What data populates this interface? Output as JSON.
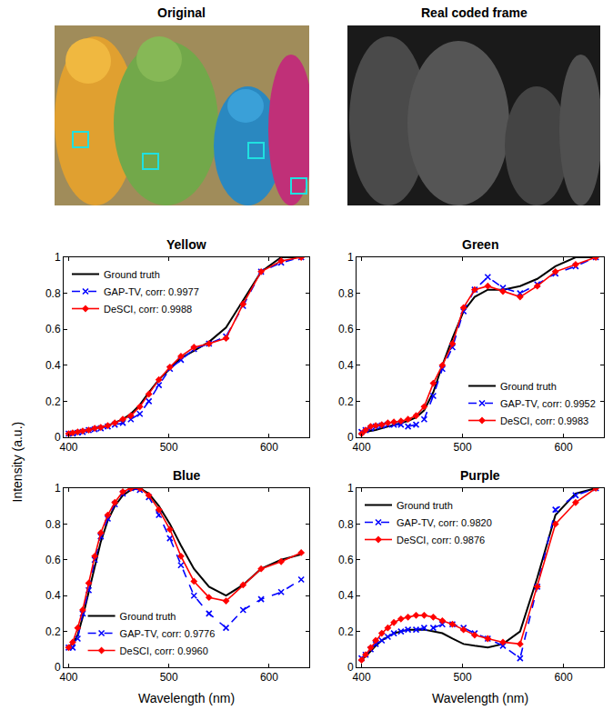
{
  "panels": [
    {
      "title": "Original"
    },
    {
      "title": "Real coded frame"
    }
  ],
  "chart_data": [
    {
      "type": "line",
      "title": "Yellow",
      "ylabel": "Intensity (a.u.)",
      "x": [
        400,
        404,
        409,
        414,
        420,
        426,
        432,
        439,
        446,
        454,
        462,
        471,
        480,
        490,
        501,
        512,
        525,
        540,
        557,
        574,
        592,
        612,
        632
      ],
      "series": [
        {
          "name": "Ground truth",
          "color": "#000000",
          "line_style": "solid",
          "marker": "none",
          "values": [
            0.02,
            0.02,
            0.03,
            0.035,
            0.04,
            0.05,
            0.055,
            0.065,
            0.08,
            0.1,
            0.13,
            0.18,
            0.25,
            0.32,
            0.38,
            0.44,
            0.48,
            0.53,
            0.61,
            0.76,
            0.92,
            1.0,
            1.0
          ]
        },
        {
          "name": "GAP-TV, corr: 0.9977",
          "color": "#0000ff",
          "line_style": "dashed",
          "marker": "x",
          "values": [
            0.02,
            0.02,
            0.025,
            0.03,
            0.04,
            0.045,
            0.05,
            0.06,
            0.07,
            0.08,
            0.1,
            0.13,
            0.2,
            0.29,
            0.38,
            0.43,
            0.49,
            0.52,
            0.56,
            0.73,
            0.92,
            0.97,
            1.0
          ]
        },
        {
          "name": "DeSCI, corr: 0.9988",
          "color": "#ff0000",
          "line_style": "solid",
          "marker": "diamond",
          "values": [
            0.02,
            0.025,
            0.03,
            0.035,
            0.04,
            0.05,
            0.055,
            0.065,
            0.08,
            0.1,
            0.12,
            0.17,
            0.24,
            0.32,
            0.39,
            0.45,
            0.5,
            0.52,
            0.55,
            0.74,
            0.92,
            0.98,
            1.0
          ]
        }
      ],
      "xlim": [
        395,
        640
      ],
      "xticks": [
        400,
        500,
        600
      ],
      "ylim": [
        0,
        1
      ],
      "yticks": [
        0,
        0.2,
        0.4,
        0.6,
        0.8,
        1
      ],
      "grid": false,
      "legend": "upper left"
    },
    {
      "type": "line",
      "title": "Green",
      "x": [
        400,
        404,
        409,
        414,
        420,
        426,
        432,
        439,
        446,
        454,
        462,
        471,
        480,
        490,
        501,
        512,
        525,
        540,
        557,
        574,
        592,
        612,
        632
      ],
      "series": [
        {
          "name": "Ground truth",
          "color": "#000000",
          "line_style": "solid",
          "marker": "none",
          "values": [
            0.02,
            0.03,
            0.035,
            0.04,
            0.05,
            0.06,
            0.07,
            0.08,
            0.09,
            0.11,
            0.15,
            0.25,
            0.4,
            0.55,
            0.7,
            0.78,
            0.82,
            0.82,
            0.84,
            0.88,
            0.95,
            1.0,
            1.0
          ]
        },
        {
          "name": "GAP-TV, corr: 0.9952",
          "color": "#0000ff",
          "line_style": "dashed",
          "marker": "x",
          "values": [
            0.03,
            0.04,
            0.05,
            0.06,
            0.065,
            0.07,
            0.07,
            0.07,
            0.06,
            0.07,
            0.1,
            0.23,
            0.38,
            0.5,
            0.7,
            0.82,
            0.89,
            0.83,
            0.8,
            0.85,
            0.91,
            0.95,
            1.0
          ]
        },
        {
          "name": "DeSCI, corr: 0.9983",
          "color": "#ff0000",
          "line_style": "solid",
          "marker": "diamond",
          "values": [
            0.02,
            0.04,
            0.06,
            0.065,
            0.07,
            0.08,
            0.085,
            0.09,
            0.1,
            0.12,
            0.17,
            0.3,
            0.4,
            0.52,
            0.72,
            0.82,
            0.84,
            0.81,
            0.78,
            0.84,
            0.92,
            0.96,
            1.0
          ]
        }
      ],
      "xlim": [
        395,
        640
      ],
      "xticks": [
        400,
        500,
        600
      ],
      "ylim": [
        0,
        1
      ],
      "yticks": [
        0,
        0.2,
        0.4,
        0.6,
        0.8,
        1
      ],
      "grid": false,
      "legend": "lower right"
    },
    {
      "type": "line",
      "title": "Blue",
      "xlabel": "Wavelength (nm)",
      "x": [
        400,
        404,
        409,
        414,
        420,
        426,
        432,
        439,
        446,
        454,
        462,
        471,
        480,
        490,
        501,
        512,
        525,
        540,
        557,
        574,
        592,
        612,
        632
      ],
      "series": [
        {
          "name": "Ground truth",
          "color": "#000000",
          "line_style": "solid",
          "marker": "none",
          "values": [
            0.12,
            0.13,
            0.18,
            0.28,
            0.42,
            0.56,
            0.7,
            0.82,
            0.9,
            0.96,
            0.99,
            1.0,
            0.97,
            0.9,
            0.8,
            0.68,
            0.55,
            0.45,
            0.4,
            0.46,
            0.55,
            0.6,
            0.63
          ]
        },
        {
          "name": "GAP-TV, corr: 0.9776",
          "color": "#0000ff",
          "line_style": "dashed",
          "marker": "x",
          "values": [
            0.11,
            0.11,
            0.16,
            0.3,
            0.43,
            0.6,
            0.73,
            0.83,
            0.91,
            0.97,
            1.0,
            0.99,
            0.95,
            0.85,
            0.72,
            0.57,
            0.4,
            0.3,
            0.22,
            0.32,
            0.38,
            0.42,
            0.49
          ]
        },
        {
          "name": "DeSCI, corr: 0.9960",
          "color": "#ff0000",
          "line_style": "solid",
          "marker": "diamond",
          "values": [
            0.11,
            0.14,
            0.22,
            0.32,
            0.47,
            0.62,
            0.75,
            0.85,
            0.92,
            0.98,
            1.0,
            1.0,
            0.96,
            0.88,
            0.77,
            0.62,
            0.48,
            0.39,
            0.37,
            0.46,
            0.55,
            0.59,
            0.64
          ]
        }
      ],
      "xlim": [
        395,
        640
      ],
      "xticks": [
        400,
        500,
        600
      ],
      "ylim": [
        0,
        1
      ],
      "yticks": [
        0,
        0.2,
        0.4,
        0.6,
        0.8,
        1
      ],
      "grid": false,
      "legend": "lower center"
    },
    {
      "type": "line",
      "title": "Purple",
      "xlabel": "Wavelength (nm)",
      "x": [
        400,
        404,
        409,
        414,
        420,
        426,
        432,
        439,
        446,
        454,
        462,
        471,
        480,
        490,
        501,
        512,
        525,
        540,
        557,
        574,
        592,
        612,
        632
      ],
      "series": [
        {
          "name": "Ground truth",
          "color": "#000000",
          "line_style": "solid",
          "marker": "none",
          "values": [
            0.04,
            0.06,
            0.09,
            0.12,
            0.15,
            0.17,
            0.19,
            0.2,
            0.21,
            0.21,
            0.21,
            0.2,
            0.19,
            0.16,
            0.13,
            0.12,
            0.11,
            0.13,
            0.2,
            0.5,
            0.85,
            0.97,
            1.0
          ]
        },
        {
          "name": "GAP-TV, corr: 0.9820",
          "color": "#0000ff",
          "line_style": "dashed",
          "marker": "x",
          "values": [
            0.05,
            0.07,
            0.1,
            0.13,
            0.15,
            0.17,
            0.19,
            0.2,
            0.21,
            0.21,
            0.22,
            0.22,
            0.24,
            0.24,
            0.22,
            0.19,
            0.16,
            0.12,
            0.05,
            0.45,
            0.88,
            0.96,
            1.0
          ]
        },
        {
          "name": "DeSCI, corr: 0.9876",
          "color": "#ff0000",
          "line_style": "solid",
          "marker": "diamond",
          "values": [
            0.04,
            0.07,
            0.11,
            0.15,
            0.19,
            0.22,
            0.25,
            0.27,
            0.28,
            0.29,
            0.29,
            0.28,
            0.26,
            0.24,
            0.21,
            0.18,
            0.16,
            0.14,
            0.13,
            0.45,
            0.8,
            0.92,
            1.0
          ]
        }
      ],
      "xlim": [
        395,
        640
      ],
      "xticks": [
        400,
        500,
        600
      ],
      "ylim": [
        0,
        1
      ],
      "yticks": [
        0,
        0.2,
        0.4,
        0.6,
        0.8,
        1
      ],
      "grid": false,
      "legend": "upper left"
    }
  ]
}
